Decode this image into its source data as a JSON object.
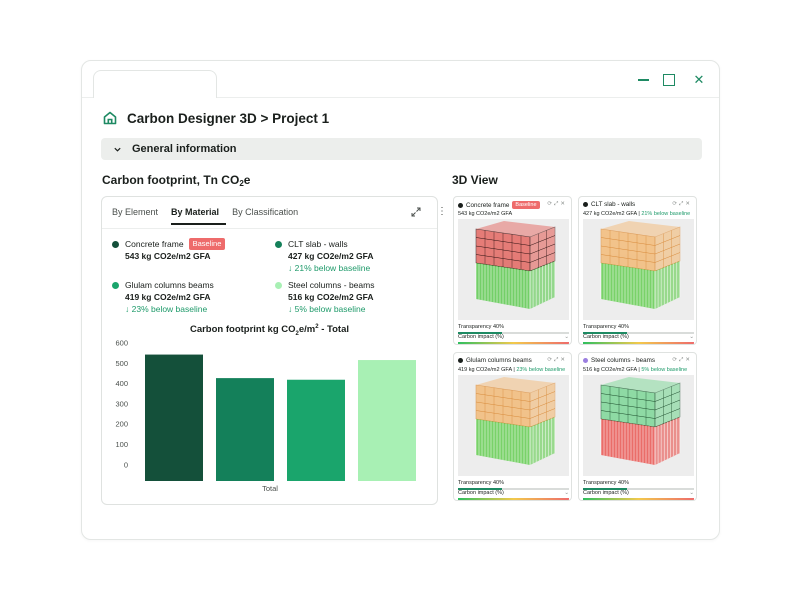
{
  "header": {
    "title": "Carbon Designer 3D > Project 1"
  },
  "accordion": {
    "label": "General information"
  },
  "footprint": {
    "title_main": "Carbon footprint, Tn CO",
    "title_sub": "2",
    "title_end": "e",
    "tabs": [
      "By Element",
      "By Material",
      "By Classification"
    ],
    "active_tab": "By Material",
    "materials": [
      {
        "name": "Concrete frame",
        "badge": "Baseline",
        "value": "543 kg CO2e/m2 GFA",
        "delta": "",
        "color": "#14503a"
      },
      {
        "name": "CLT slab - walls",
        "badge": "",
        "value": "427 kg CO2e/m2 GFA",
        "delta": "↓ 21% below baseline",
        "color": "#14805a"
      },
      {
        "name": "Glulam columns beams",
        "badge": "",
        "value": "419 kg CO2e/m2 GFA",
        "delta": "↓ 23% below baseline",
        "color": "#1aa56c"
      },
      {
        "name": "Steel columns - beams",
        "badge": "",
        "value": "516 kg CO2e/m2 GFA",
        "delta": "↓ 5% below baseline",
        "color": "#a8f0b4"
      }
    ]
  },
  "chart_data": {
    "type": "bar",
    "title_main": "Carbon footprint kg CO",
    "title_sub": "2",
    "title_mid": "e/m",
    "title_sup": "2",
    "title_end": " - Total",
    "categories": [
      "Total"
    ],
    "series": [
      {
        "name": "Concrete frame",
        "values": [
          543
        ],
        "color": "#14503a"
      },
      {
        "name": "CLT slab - walls",
        "values": [
          427
        ],
        "color": "#14805a"
      },
      {
        "name": "Glulam columns beams",
        "values": [
          419
        ],
        "color": "#1aa56c"
      },
      {
        "name": "Steel columns - beams",
        "values": [
          516
        ],
        "color": "#a8f0b4"
      }
    ],
    "yticks": [
      0,
      100,
      200,
      300,
      400,
      500,
      600
    ],
    "ylim": [
      -80,
      600
    ],
    "grid": false,
    "legend": "none"
  },
  "view3d": {
    "title": "3D View",
    "panels": [
      {
        "name": "Concrete frame",
        "badge": "Baseline",
        "dot": "#1a1f1c",
        "sub": "543 kg CO2e/m2 GFA",
        "delta": "",
        "top_color": "#e2564f",
        "bottom_color": "#49c43b",
        "frame": "#2a1010",
        "transparency_label": "Transparency 40%",
        "transparency": 0.4,
        "impact_label": "Carbon impact (%)"
      },
      {
        "name": "CLT slab - walls",
        "badge": "",
        "dot": "#1a1f1c",
        "sub": "427 kg CO2e/m2 GFA",
        "delta": "21% below baseline",
        "top_color": "#f3b46a",
        "bottom_color": "#52c83c",
        "frame": "#d88a3a",
        "transparency_label": "Transparency 40%",
        "transparency": 0.4,
        "impact_label": "Carbon impact (%)"
      },
      {
        "name": "Glulam columns beams",
        "badge": "",
        "dot": "#1a1f1c",
        "sub": "419 kg CO2e/m2 GFA",
        "delta": "23% below baseline",
        "top_color": "#f3b46a",
        "bottom_color": "#52c83c",
        "frame": "#d88a3a",
        "transparency_label": "Transparency 40%",
        "transparency": 0.4,
        "impact_label": "Carbon impact (%)"
      },
      {
        "name": "Steel columns - beams",
        "badge": "",
        "dot": "#9b7fe0",
        "sub": "516 kg CO2e/m2 GFA",
        "delta": "5% below baseline",
        "top_color": "#6fd48c",
        "bottom_color": "#e8413c",
        "frame": "#1a4a2a",
        "transparency_label": "Transparency 40%",
        "transparency": 0.4,
        "impact_label": "Carbon impact (%)"
      }
    ]
  }
}
